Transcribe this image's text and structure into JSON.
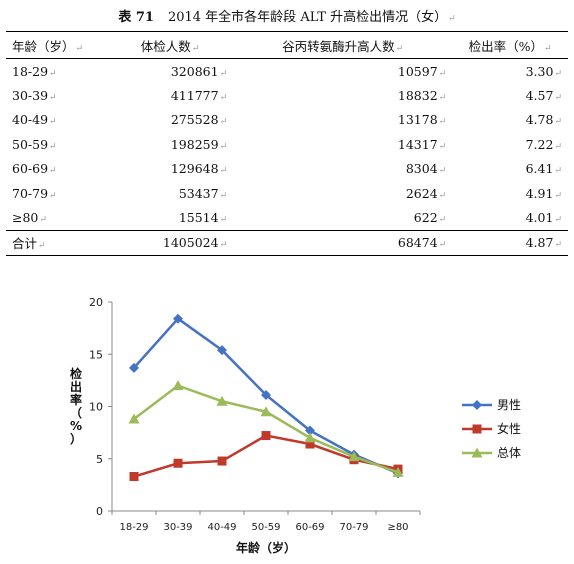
{
  "title": {
    "number": "表 71",
    "text": "2014 年全市各年龄段 ALT 升高检出情况（女）"
  },
  "table": {
    "headers": [
      "年龄（岁）",
      "体检人数",
      "谷丙转氨酶升高人数",
      "检出率（%）"
    ],
    "rows": [
      [
        "18-29",
        "320861",
        "10597",
        "3.30"
      ],
      [
        "30-39",
        "411777",
        "18832",
        "4.57"
      ],
      [
        "40-49",
        "275528",
        "13178",
        "4.78"
      ],
      [
        "50-59",
        "198259",
        "14317",
        "7.22"
      ],
      [
        "60-69",
        "129648",
        "8304",
        "6.41"
      ],
      [
        "70-79",
        "53437",
        "2624",
        "4.91"
      ],
      [
        "≥80",
        "15514",
        "622",
        "4.01"
      ]
    ],
    "total": [
      "合计",
      "1405024",
      "68474",
      "4.87"
    ]
  },
  "chart_data": {
    "type": "line",
    "categories": [
      "18-29",
      "30-39",
      "40-49",
      "50-59",
      "60-69",
      "70-79",
      "≥80"
    ],
    "series": [
      {
        "name": "男性",
        "color": "#4472c4",
        "marker": "diamond",
        "values": [
          13.7,
          18.4,
          15.4,
          11.1,
          7.7,
          5.4,
          3.6
        ]
      },
      {
        "name": "女性",
        "color": "#c0392b",
        "marker": "square",
        "values": [
          3.3,
          4.57,
          4.78,
          7.22,
          6.41,
          4.91,
          4.01
        ]
      },
      {
        "name": "总体",
        "color": "#9bbb59",
        "marker": "triangle",
        "values": [
          8.8,
          12.0,
          10.5,
          9.5,
          7.0,
          5.2,
          3.7
        ]
      }
    ],
    "xlabel": "年龄（岁）",
    "ylabel": "检出率（%）",
    "ylim": [
      0,
      20
    ],
    "yticks": [
      0,
      5,
      10,
      15,
      20
    ],
    "legend": "right",
    "grid": false
  }
}
